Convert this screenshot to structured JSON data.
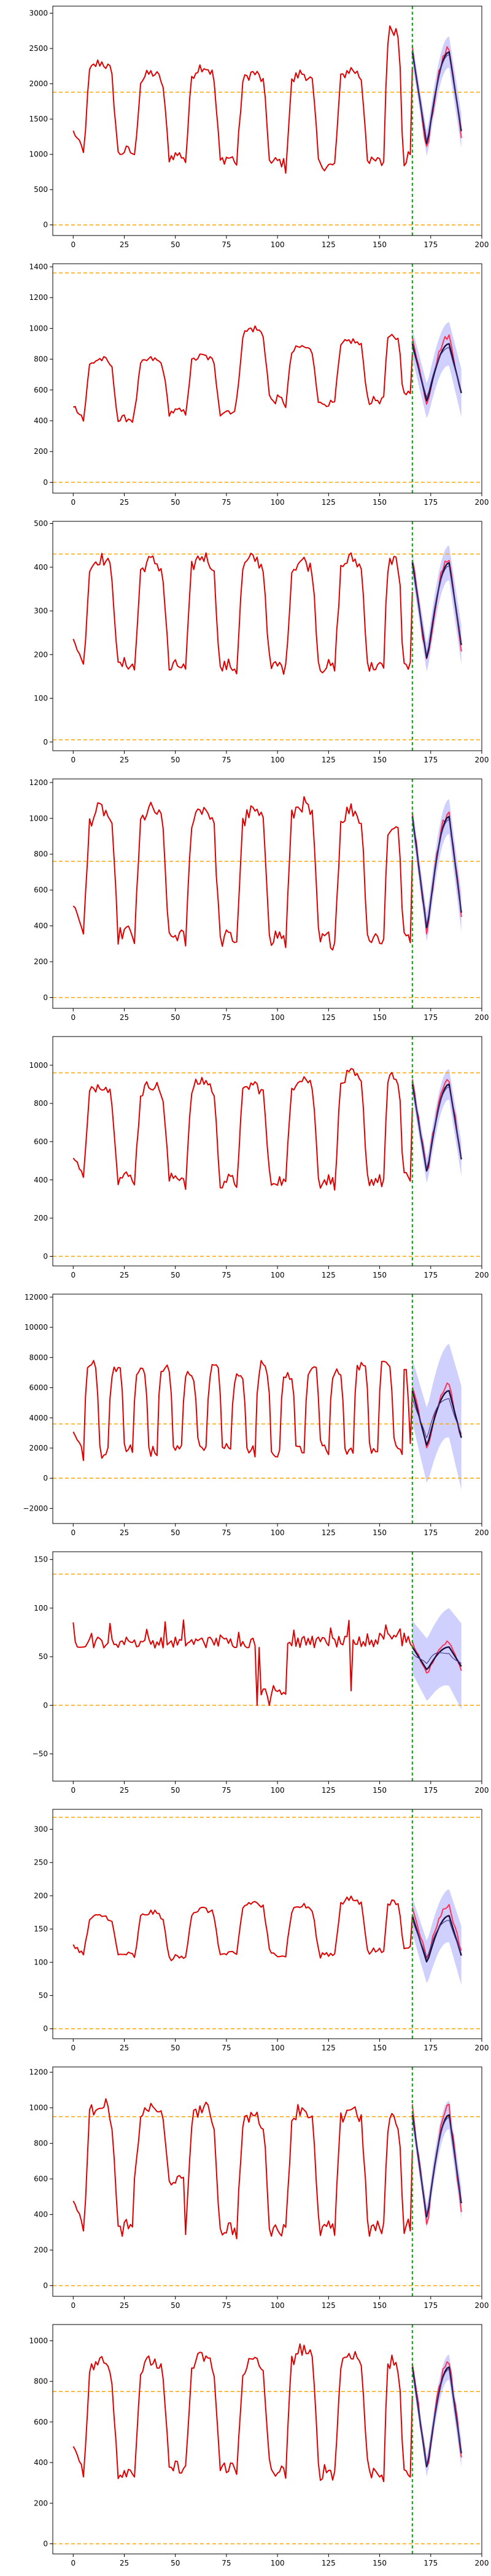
{
  "figure": {
    "panel_count": 10,
    "forecast_start": 166,
    "x_max": 190,
    "colors": {
      "history": "#dd0000",
      "forecast_true": "#ff3355",
      "forecast_mean": "#1a1040",
      "interval": "#aaaaff",
      "threshold": "#ffa500",
      "split": "#00aa00"
    }
  },
  "chart_data": [
    {
      "type": "line",
      "xlim": [
        -10,
        200
      ],
      "ylim": [
        -150,
        3100
      ],
      "xticks": [
        0,
        25,
        50,
        75,
        100,
        125,
        150,
        175,
        200
      ],
      "yticks": [
        0,
        500,
        1000,
        1500,
        2000,
        2500,
        3000
      ],
      "thresholds": [
        0,
        1880
      ],
      "split_x": 166,
      "cycles": [
        [
          5,
          30,
          1000,
          2300
        ],
        [
          30,
          55,
          950,
          2150
        ],
        [
          55,
          80,
          900,
          2250
        ],
        [
          80,
          104,
          850,
          2150
        ],
        [
          104,
          128,
          800,
          2150
        ],
        [
          128,
          152,
          850,
          2200
        ],
        [
          152,
          166,
          900,
          2800
        ]
      ],
      "forecast": {
        "low": 950,
        "high": 2500,
        "pred_low": 1050,
        "pred_high": 2450,
        "band": 250
      }
    },
    {
      "type": "line",
      "xlim": [
        -10,
        200
      ],
      "ylim": [
        -70,
        1420
      ],
      "xticks": [
        0,
        25,
        50,
        75,
        100,
        125,
        150,
        175,
        200
      ],
      "yticks": [
        0,
        200,
        400,
        600,
        800,
        1000,
        1200,
        1400
      ],
      "thresholds": [
        0,
        1360
      ],
      "split_x": 166,
      "cycles": [
        [
          5,
          30,
          400,
          800
        ],
        [
          30,
          55,
          450,
          800
        ],
        [
          55,
          80,
          450,
          820
        ],
        [
          80,
          104,
          520,
          1000
        ],
        [
          104,
          128,
          500,
          880
        ],
        [
          128,
          152,
          520,
          920
        ],
        [
          152,
          166,
          560,
          950
        ]
      ],
      "forecast": {
        "low": 480,
        "high": 950,
        "pred_low": 500,
        "pred_high": 900,
        "band": 160
      }
    },
    {
      "type": "line",
      "xlim": [
        -10,
        200
      ],
      "ylim": [
        -20,
        505
      ],
      "xticks": [
        0,
        25,
        50,
        75,
        100,
        125,
        150,
        175,
        200
      ],
      "yticks": [
        0,
        100,
        200,
        300,
        400,
        500
      ],
      "thresholds": [
        5,
        430
      ],
      "split_x": 166,
      "cycles": [
        [
          5,
          30,
          170,
          420
        ],
        [
          30,
          55,
          165,
          415
        ],
        [
          55,
          80,
          165,
          425
        ],
        [
          80,
          104,
          165,
          420
        ],
        [
          104,
          128,
          165,
          415
        ],
        [
          128,
          152,
          165,
          420
        ],
        [
          152,
          166,
          165,
          420
        ]
      ],
      "forecast": {
        "low": 160,
        "high": 420,
        "pred_low": 175,
        "pred_high": 410,
        "band": 45
      }
    },
    {
      "type": "line",
      "xlim": [
        -10,
        200
      ],
      "ylim": [
        -60,
        1220
      ],
      "xticks": [
        0,
        25,
        50,
        75,
        100,
        125,
        150,
        175,
        200
      ],
      "yticks": [
        0,
        200,
        400,
        600,
        800,
        1000,
        1200
      ],
      "thresholds": [
        0,
        760
      ],
      "split_x": 166,
      "cycles": [
        [
          5,
          30,
          340,
          1050
        ],
        [
          30,
          55,
          320,
          1050
        ],
        [
          55,
          80,
          310,
          1060
        ],
        [
          80,
          104,
          320,
          1040
        ],
        [
          104,
          128,
          300,
          1080
        ],
        [
          128,
          152,
          310,
          1050
        ],
        [
          152,
          166,
          320,
          960
        ]
      ],
      "forecast": {
        "low": 330,
        "high": 1030,
        "pred_low": 340,
        "pred_high": 1010,
        "band": 110
      }
    },
    {
      "type": "line",
      "xlim": [
        -10,
        200
      ],
      "ylim": [
        -50,
        1150
      ],
      "xticks": [
        0,
        25,
        50,
        75,
        100,
        125,
        150,
        175,
        200
      ],
      "yticks": [
        0,
        200,
        400,
        600,
        800,
        1000
      ],
      "thresholds": [
        0,
        960
      ],
      "split_x": 166,
      "cycles": [
        [
          5,
          30,
          400,
          900
        ],
        [
          30,
          55,
          400,
          900
        ],
        [
          55,
          80,
          380,
          920
        ],
        [
          80,
          104,
          380,
          900
        ],
        [
          104,
          128,
          380,
          940
        ],
        [
          128,
          152,
          380,
          950
        ],
        [
          152,
          166,
          400,
          940
        ]
      ],
      "forecast": {
        "low": 400,
        "high": 930,
        "pred_low": 410,
        "pred_high": 900,
        "band": 90
      }
    },
    {
      "type": "line",
      "xlim": [
        -10,
        200
      ],
      "ylim": [
        -3000,
        12200
      ],
      "xticks": [
        0,
        25,
        50,
        75,
        100,
        125,
        150,
        175,
        200
      ],
      "yticks": [
        -2000,
        0,
        2000,
        4000,
        6000,
        8000,
        10000,
        12000
      ],
      "thresholds": [
        0,
        3600
      ],
      "split_x": 166,
      "cycles": [
        [
          5,
          17,
          1500,
          7600
        ],
        [
          17,
          29,
          1800,
          7400
        ],
        [
          29,
          41,
          1600,
          7200
        ],
        [
          41,
          53,
          1700,
          7400
        ],
        [
          53,
          65,
          2000,
          7000
        ],
        [
          65,
          77,
          1800,
          7400
        ],
        [
          77,
          89,
          1800,
          6800
        ],
        [
          89,
          101,
          1500,
          7600
        ],
        [
          101,
          113,
          1800,
          6900
        ],
        [
          113,
          125,
          1700,
          7400
        ],
        [
          125,
          137,
          1700,
          7000
        ],
        [
          137,
          149,
          1800,
          7600
        ],
        [
          149,
          161,
          1800,
          7800
        ],
        [
          161,
          166,
          1800,
          7500
        ]
      ],
      "forecast": {
        "low": 1600,
        "high": 6200,
        "pred_low": 1900,
        "pred_high": 5800,
        "band": 3500
      }
    },
    {
      "type": "line",
      "xlim": [
        -10,
        200
      ],
      "ylim": [
        -78,
        158
      ],
      "xticks": [
        0,
        25,
        50,
        75,
        100,
        125,
        150,
        175,
        200
      ],
      "yticks": [
        -50,
        0,
        50,
        100,
        150
      ],
      "thresholds": [
        0,
        135
      ],
      "split_x": 166,
      "special": "flat",
      "flat_level": 65,
      "forecast": {
        "low": 30,
        "high": 65,
        "pred_low": 35,
        "pred_high": 60,
        "band": 45
      }
    },
    {
      "type": "line",
      "xlim": [
        -10,
        200
      ],
      "ylim": [
        -15,
        330
      ],
      "xticks": [
        0,
        25,
        50,
        75,
        100,
        125,
        150,
        175,
        200
      ],
      "yticks": [
        0,
        50,
        100,
        150,
        200,
        250,
        300
      ],
      "thresholds": [
        0,
        318
      ],
      "split_x": 166,
      "cycles": [
        [
          5,
          30,
          110,
          170
        ],
        [
          30,
          55,
          105,
          175
        ],
        [
          55,
          80,
          110,
          180
        ],
        [
          80,
          104,
          110,
          190
        ],
        [
          104,
          128,
          110,
          185
        ],
        [
          128,
          152,
          115,
          195
        ],
        [
          152,
          166,
          120,
          190
        ]
      ],
      "forecast": {
        "low": 100,
        "high": 185,
        "pred_low": 95,
        "pred_high": 170,
        "band": 45
      }
    },
    {
      "type": "line",
      "xlim": [
        -10,
        200
      ],
      "ylim": [
        -60,
        1230
      ],
      "xticks": [
        0,
        25,
        50,
        75,
        100,
        125,
        150,
        175,
        200
      ],
      "yticks": [
        0,
        200,
        400,
        600,
        800,
        1000,
        1200
      ],
      "thresholds": [
        0,
        950
      ],
      "split_x": 166,
      "cycles": [
        [
          5,
          30,
          300,
          1030
        ],
        [
          30,
          55,
          580,
          1000
        ],
        [
          55,
          80,
          300,
          1000
        ],
        [
          80,
          104,
          300,
          960
        ],
        [
          104,
          128,
          300,
          1000
        ],
        [
          128,
          152,
          300,
          1000
        ],
        [
          152,
          166,
          320,
          950
        ]
      ],
      "forecast": {
        "low": 300,
        "high": 1000,
        "pred_low": 340,
        "pred_high": 960,
        "band": 90
      }
    },
    {
      "type": "line",
      "xlim": [
        -10,
        200
      ],
      "ylim": [
        -50,
        1080
      ],
      "xticks": [
        0,
        25,
        50,
        75,
        100,
        125,
        150,
        175,
        200
      ],
      "yticks": [
        0,
        200,
        400,
        600,
        800,
        1000
      ],
      "thresholds": [
        0,
        750
      ],
      "split_x": 166,
      "cycles": [
        [
          5,
          30,
          340,
          900
        ],
        [
          30,
          55,
          360,
          900
        ],
        [
          55,
          80,
          360,
          920
        ],
        [
          80,
          104,
          340,
          900
        ],
        [
          104,
          128,
          340,
          960
        ],
        [
          128,
          152,
          340,
          940
        ],
        [
          152,
          166,
          330,
          900
        ]
      ],
      "forecast": {
        "low": 330,
        "high": 900,
        "pred_low": 340,
        "pred_high": 870,
        "band": 70
      }
    }
  ]
}
